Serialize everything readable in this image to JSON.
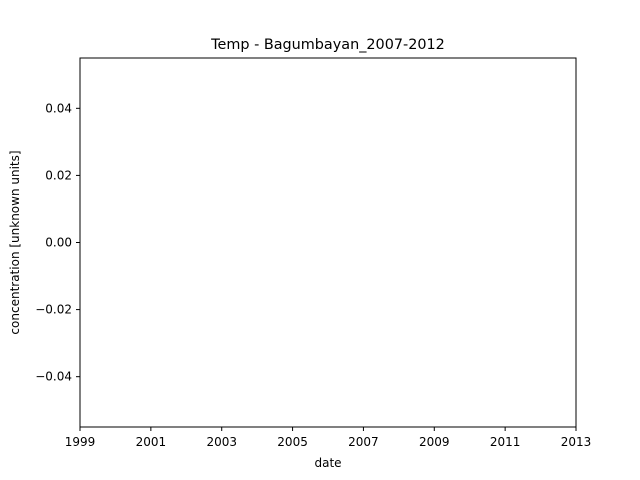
{
  "chart_data": {
    "type": "line",
    "title": "Temp - Bagumbayan_2007-2012",
    "xlabel": "date",
    "ylabel": "concentration [unknown units]",
    "xlim": [
      "1999",
      "2013"
    ],
    "ylim": [
      -0.055,
      0.055
    ],
    "x_ticks": [
      "1999",
      "2001",
      "2003",
      "2005",
      "2007",
      "2009",
      "2011",
      "2013"
    ],
    "y_ticks": [
      "−0.04",
      "−0.02",
      "0.00",
      "0.02",
      "0.04"
    ],
    "y_tick_values": [
      -0.04,
      -0.02,
      0.0,
      0.02,
      0.04
    ],
    "series": [],
    "grid": false,
    "legend": "none"
  }
}
